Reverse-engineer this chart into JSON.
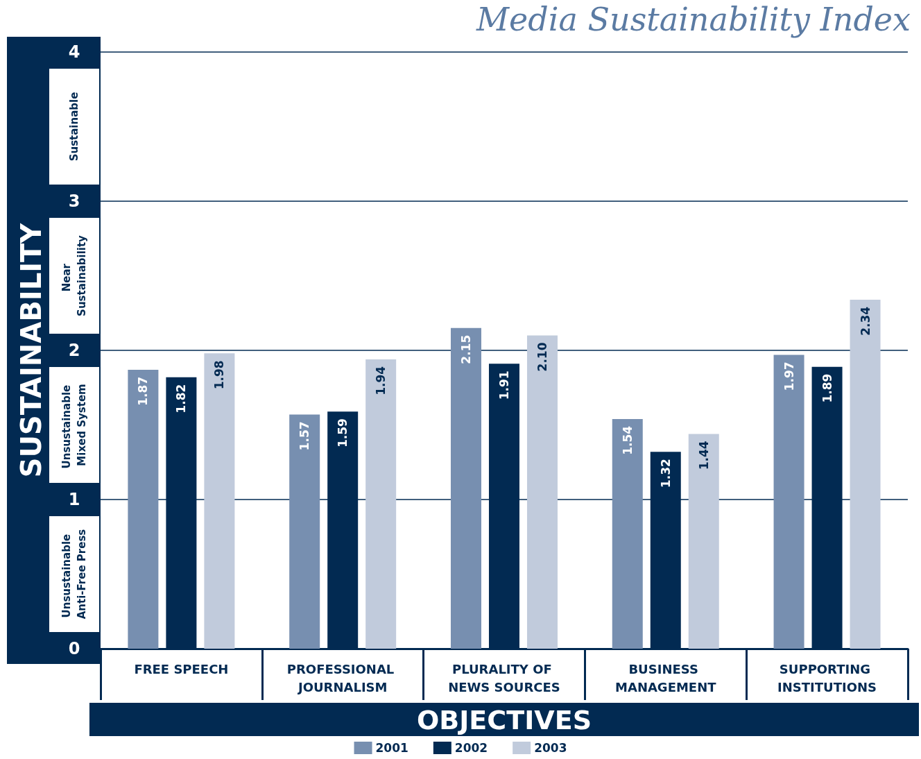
{
  "chart_data": {
    "type": "bar",
    "title": "Media Sustainability Index",
    "xlabel": "OBJECTIVES",
    "ylabel": "SUSTAINABILITY",
    "categories": [
      "FREE SPEECH",
      "PROFESSIONAL JOURNALISM",
      "PLURALITY OF NEWS SOURCES",
      "BUSINESS MANAGEMENT",
      "SUPPORTING INSTITUTIONS"
    ],
    "series": [
      {
        "name": "2001",
        "color": "#778fb0",
        "values": [
          1.87,
          1.57,
          2.15,
          1.54,
          1.97
        ],
        "value_labels": [
          "1.87",
          "1.57",
          "2.15",
          "1.54",
          "1.97"
        ]
      },
      {
        "name": "2002",
        "color": "#022a52",
        "values": [
          1.82,
          1.59,
          1.91,
          1.32,
          1.89
        ],
        "value_labels": [
          "1.82",
          "1.59",
          "1.91",
          "1.32",
          "1.89"
        ]
      },
      {
        "name": "2003",
        "color": "#c1cbdc",
        "values": [
          1.98,
          1.94,
          2.1,
          1.44,
          2.34
        ],
        "value_labels": [
          "1.98",
          "1.94",
          "2.10",
          "1.44",
          "2.34"
        ]
      }
    ],
    "ylim": [
      0,
      4
    ],
    "yticks": [
      0,
      1,
      2,
      3,
      4
    ],
    "grid": "y",
    "legend": "bottom",
    "annotations": [
      "Sustainable",
      "Near Sustainability",
      "Unsustainable Mixed System",
      "Unsustainable Anti-Free Press"
    ]
  }
}
